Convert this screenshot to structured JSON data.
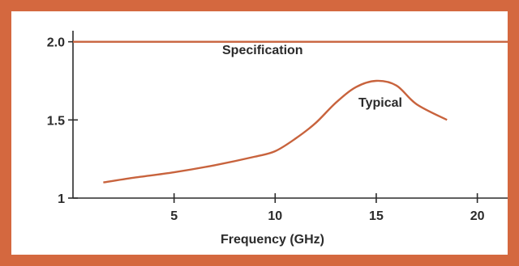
{
  "chart_data": {
    "type": "line",
    "title": "",
    "xlabel": "Frequency (GHz)",
    "ylabel": "",
    "xlim": [
      0,
      21.5
    ],
    "ylim": [
      1,
      2.05
    ],
    "grid": false,
    "x_ticks": [
      {
        "value": 5,
        "label": "5"
      },
      {
        "value": 10,
        "label": "10"
      },
      {
        "value": 15,
        "label": "15"
      },
      {
        "value": 20,
        "label": "20"
      }
    ],
    "y_ticks": [
      {
        "value": 1,
        "label": "1"
      },
      {
        "value": 1.5,
        "label": "1.5"
      },
      {
        "value": 2.0,
        "label": "2.0"
      }
    ],
    "series": [
      {
        "name": "Specification",
        "color": "#c8633d",
        "x": [
          0,
          21.5
        ],
        "y": [
          2.0,
          2.0
        ]
      },
      {
        "name": "Typical",
        "color": "#c8633d",
        "x": [
          1.5,
          3,
          5,
          7,
          9,
          10,
          11,
          12,
          13,
          14,
          15,
          16,
          17,
          18.5
        ],
        "y": [
          1.1,
          1.13,
          1.165,
          1.21,
          1.265,
          1.3,
          1.38,
          1.48,
          1.61,
          1.71,
          1.75,
          1.72,
          1.6,
          1.5
        ]
      }
    ]
  }
}
